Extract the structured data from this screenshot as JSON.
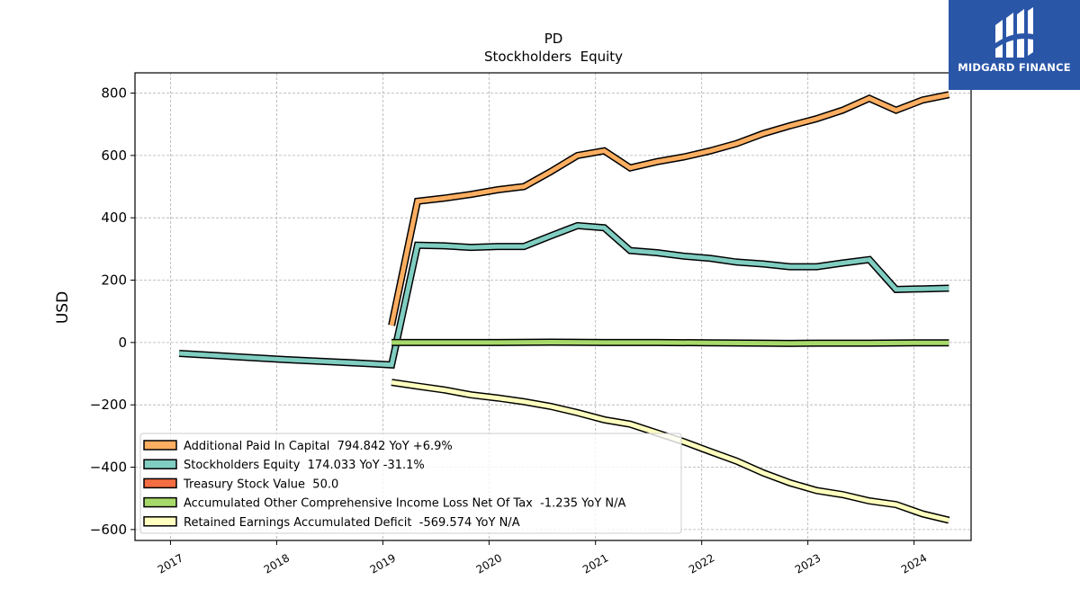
{
  "chart_data": {
    "type": "line",
    "title": "PD",
    "subtitle": "Stockholders  Equity",
    "xlabel": "",
    "ylabel": "USD",
    "xlim": [
      "2016-09-01",
      "2024-07-15"
    ],
    "ylim": [
      -635,
      865
    ],
    "yticks": [
      -600,
      -400,
      -200,
      0,
      200,
      400,
      600,
      800
    ],
    "ytick_labels": [
      "−600",
      "−400",
      "−200",
      "0",
      "200",
      "400",
      "600",
      "800"
    ],
    "xticks": [
      "2017-01-01",
      "2018-01-01",
      "2019-01-01",
      "2020-01-01",
      "2021-01-01",
      "2022-01-01",
      "2023-01-01",
      "2024-01-01"
    ],
    "xtick_labels": [
      "2017",
      "2018",
      "2019",
      "2020",
      "2021",
      "2022",
      "2023",
      "2024"
    ],
    "grid": true,
    "legend_position": "lower-left",
    "series": [
      {
        "name": "Additional Paid In Capital",
        "legend_label": "Additional Paid In Capital  794.842 YoY +6.9%",
        "color": "#fdae61",
        "x": [
          "2019-01-31",
          "2019-04-30",
          "2019-07-31",
          "2019-10-31",
          "2020-01-31",
          "2020-04-30",
          "2020-07-31",
          "2020-10-31",
          "2021-01-31",
          "2021-04-30",
          "2021-07-31",
          "2021-10-31",
          "2022-01-31",
          "2022-04-30",
          "2022-07-31",
          "2022-10-31",
          "2023-01-31",
          "2023-04-30",
          "2023-07-31",
          "2023-10-31",
          "2024-01-31",
          "2024-04-30"
        ],
        "y": [
          55,
          453,
          463,
          475,
          490,
          500,
          548,
          600,
          615,
          560,
          580,
          595,
          615,
          638,
          670,
          695,
          718,
          745,
          783,
          745,
          778,
          795
        ]
      },
      {
        "name": "Stockholders Equity",
        "legend_label": "Stockholders Equity  174.033 YoY -31.1%",
        "color": "#80cdc1",
        "x": [
          "2017-01-31",
          "2018-01-31",
          "2018-10-31",
          "2019-01-31",
          "2019-04-30",
          "2019-07-31",
          "2019-10-31",
          "2020-01-31",
          "2020-04-30",
          "2020-07-31",
          "2020-10-31",
          "2021-01-31",
          "2021-04-30",
          "2021-07-31",
          "2021-10-31",
          "2022-01-31",
          "2022-04-30",
          "2022-07-31",
          "2022-10-31",
          "2023-01-31",
          "2023-04-30",
          "2023-07-31",
          "2023-10-31",
          "2024-01-31",
          "2024-04-30"
        ],
        "y": [
          -35,
          -55,
          -67,
          -72,
          312,
          310,
          305,
          308,
          308,
          342,
          375,
          368,
          295,
          288,
          277,
          270,
          258,
          252,
          243,
          243,
          255,
          266,
          170,
          172,
          174
        ]
      },
      {
        "name": "Treasury Stock Value",
        "legend_label": "Treasury Stock Value  50.0",
        "color": "#f46d43",
        "x": [],
        "y": []
      },
      {
        "name": "Accumulated Other Comprehensive Income Loss Net Of Tax",
        "legend_label": "Accumulated Other Comprehensive Income Loss Net Of Tax  -1.235 YoY N/A",
        "color": "#a6d96a",
        "x": [
          "2019-01-31",
          "2019-07-31",
          "2020-01-31",
          "2020-07-31",
          "2021-01-31",
          "2021-07-31",
          "2022-01-31",
          "2022-07-31",
          "2022-10-31",
          "2023-01-31",
          "2023-07-31",
          "2024-01-31",
          "2024-04-30"
        ],
        "y": [
          0,
          0,
          0,
          1,
          0,
          0,
          -1,
          -2,
          -3,
          -2,
          -2,
          -1,
          -1.235
        ]
      },
      {
        "name": "Retained Earnings Accumulated Deficit",
        "legend_label": "Retained Earnings Accumulated Deficit  -569.574 YoY N/A",
        "color": "#ffffbf",
        "x": [
          "2019-01-31",
          "2019-04-30",
          "2019-07-31",
          "2019-10-31",
          "2020-01-31",
          "2020-04-30",
          "2020-07-31",
          "2020-10-31",
          "2021-01-31",
          "2021-04-30",
          "2021-07-31",
          "2021-10-31",
          "2022-01-31",
          "2022-04-30",
          "2022-07-31",
          "2022-10-31",
          "2023-01-31",
          "2023-04-30",
          "2023-07-31",
          "2023-10-31",
          "2024-01-31",
          "2024-04-30"
        ],
        "y": [
          -128,
          -140,
          -152,
          -168,
          -178,
          -190,
          -205,
          -225,
          -248,
          -262,
          -290,
          -318,
          -350,
          -380,
          -418,
          -450,
          -475,
          -488,
          -508,
          -520,
          -550,
          -570
        ]
      }
    ]
  },
  "logo": {
    "text": "MIDGARD FINANCE",
    "color": "#2a56a8"
  }
}
